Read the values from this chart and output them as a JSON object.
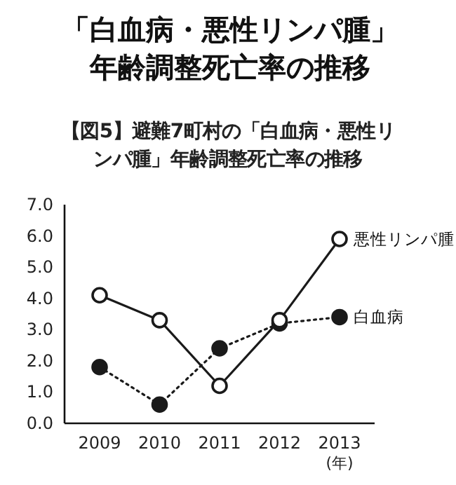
{
  "chart_data": {
    "type": "line",
    "title": "「白血病・悪性リンパ腫」年齢調整死亡率の推移",
    "subtitle": "【図5】避難7町村の「白血病・悪性リンパ腫」年齢調整死亡率の推移",
    "xlabel": "(年)",
    "categories": [
      "2009",
      "2010",
      "2011",
      "2012",
      "2013"
    ],
    "series": [
      {
        "name": "悪性リンパ腫",
        "color": "#1a1a1a",
        "line_style": "solid",
        "marker": "circle",
        "values": [
          4.1,
          3.3,
          1.2,
          3.3,
          5.9
        ]
      },
      {
        "name": "白血病",
        "color": "#1a1a1a",
        "line_style": "dotted",
        "marker": "circle",
        "values": [
          1.8,
          0.6,
          2.4,
          3.2,
          3.4
        ]
      }
    ],
    "ylim": [
      0,
      7
    ],
    "yticks": [
      {
        "value": 0,
        "label": "0.0"
      },
      {
        "value": 1,
        "label": "1.0"
      },
      {
        "value": 2,
        "label": "2.0"
      },
      {
        "value": 3,
        "label": "3.0"
      },
      {
        "value": 4,
        "label": "4.0"
      },
      {
        "value": 5,
        "label": "5.0"
      },
      {
        "value": 6,
        "label": "6.0"
      },
      {
        "value": 7,
        "label": "7.0"
      }
    ],
    "grid": false
  }
}
